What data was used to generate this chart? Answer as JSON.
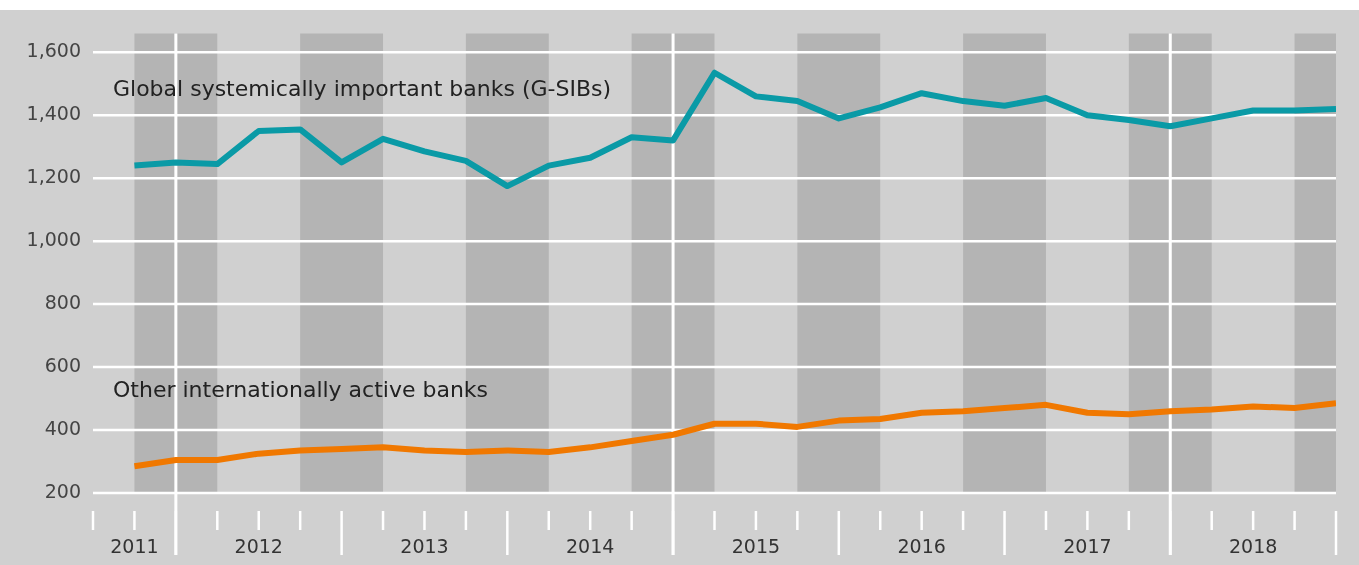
{
  "chart_data": {
    "type": "line",
    "x": [
      "2011-10",
      "2012-01",
      "2012-04",
      "2012-07",
      "2012-10",
      "2013-01",
      "2013-04",
      "2013-07",
      "2013-10",
      "2014-01",
      "2014-04",
      "2014-07",
      "2014-10",
      "2015-01",
      "2015-04",
      "2015-07",
      "2015-10",
      "2016-01",
      "2016-04",
      "2016-07",
      "2016-10",
      "2017-01",
      "2017-04",
      "2017-07",
      "2017-10",
      "2018-01",
      "2018-04",
      "2018-07",
      "2018-10",
      "2019-01"
    ],
    "series": [
      {
        "name": "Global systemically important banks (G-SIBs)",
        "color": "#0a9aa6",
        "values": [
          1240,
          1250,
          1245,
          1350,
          1355,
          1250,
          1325,
          1285,
          1255,
          1175,
          1240,
          1265,
          1330,
          1320,
          1535,
          1460,
          1445,
          1390,
          1425,
          1470,
          1445,
          1430,
          1455,
          1400,
          1385,
          1365,
          1390,
          1415,
          1415,
          1420
        ]
      },
      {
        "name": "Other internationally active banks",
        "color": "#f07800",
        "values": [
          285,
          305,
          305,
          325,
          335,
          340,
          345,
          335,
          330,
          335,
          330,
          345,
          365,
          385,
          420,
          420,
          410,
          430,
          435,
          455,
          460,
          470,
          480,
          455,
          450,
          460,
          465,
          475,
          470,
          485
        ]
      }
    ],
    "xlim": [
      "2011-07",
      "2019-01"
    ],
    "xticks": [
      {
        "value": "2011-10",
        "label": "2011"
      },
      {
        "value": "2012-07",
        "label": "2012"
      },
      {
        "value": "2013-07",
        "label": "2013"
      },
      {
        "value": "2014-07",
        "label": "2014"
      },
      {
        "value": "2015-07",
        "label": "2015"
      },
      {
        "value": "2016-07",
        "label": "2016"
      },
      {
        "value": "2017-07",
        "label": "2017"
      },
      {
        "value": "2018-07",
        "label": "2018"
      }
    ],
    "ylim": [
      200,
      1660
    ],
    "yticks": [
      200,
      400,
      600,
      800,
      {
        "value": 1000,
        "label": "1,000"
      },
      {
        "value": 1200,
        "label": "1,200"
      },
      {
        "value": 1400,
        "label": "1,400"
      },
      {
        "value": 1600,
        "label": "1,600"
      }
    ],
    "grid": "y",
    "marker": "none",
    "line_style": "solid",
    "legend": false,
    "bands": [
      {
        "axis": "x",
        "from": "2011-10",
        "to": "2012-04",
        "color": "#b4b4b4"
      },
      {
        "axis": "x",
        "from": "2012-10",
        "to": "2013-04",
        "color": "#b4b4b4"
      },
      {
        "axis": "x",
        "from": "2013-10",
        "to": "2014-04",
        "color": "#b4b4b4"
      },
      {
        "axis": "x",
        "from": "2014-10",
        "to": "2015-04",
        "color": "#b4b4b4"
      },
      {
        "axis": "x",
        "from": "2015-10",
        "to": "2016-04",
        "color": "#b4b4b4"
      },
      {
        "axis": "x",
        "from": "2016-10",
        "to": "2017-04",
        "color": "#b4b4b4"
      },
      {
        "axis": "x",
        "from": "2017-10",
        "to": "2018-04",
        "color": "#b4b4b4"
      },
      {
        "axis": "x",
        "from": "2018-10",
        "to": "2019-01",
        "color": "#b4b4b4"
      }
    ],
    "ref_lines": [
      {
        "axis": "x",
        "value": "2012-01",
        "color": "#ffffff"
      },
      {
        "axis": "x",
        "value": "2015-01",
        "color": "#ffffff"
      },
      {
        "axis": "x",
        "value": "2018-01",
        "color": "#ffffff"
      }
    ]
  }
}
